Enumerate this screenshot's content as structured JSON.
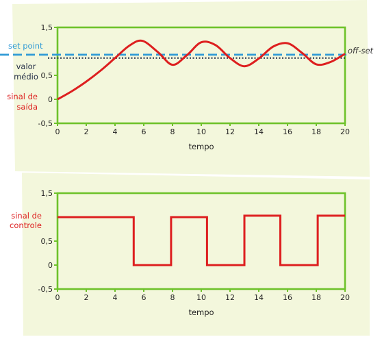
{
  "colors": {
    "panel": "#f3f7dc",
    "frame": "#6ec22b",
    "output": "#dd1f1f",
    "setpoint": "#2f9ad6",
    "average": "#1f2a44",
    "text": "#222222"
  },
  "chart_data": [
    {
      "type": "line",
      "xlabel": "tempo",
      "xlim": [
        0,
        20
      ],
      "ylim": [
        -0.5,
        1.5
      ],
      "x_ticks": [
        "0",
        "2",
        "4",
        "6",
        "8",
        "10",
        "12",
        "14",
        "16",
        "18",
        "20"
      ],
      "y_ticks": [
        "-0,5",
        "0",
        "0,5",
        "1,5"
      ],
      "labels": {
        "setpoint": "set point",
        "average_line1": "valor",
        "average_line2": "médio",
        "output_line1": "sinal de",
        "output_line2": "saída",
        "offset": "off-set"
      },
      "setpoint": 0.93,
      "average": 0.86,
      "series": [
        {
          "role": "output",
          "x": [
            0,
            1,
            2,
            3,
            4,
            5,
            5.9,
            7,
            8,
            9,
            10,
            11,
            12,
            13,
            14,
            15,
            16,
            17,
            18,
            19,
            20
          ],
          "y": [
            0,
            0.17,
            0.37,
            0.6,
            0.86,
            1.12,
            1.22,
            0.98,
            0.72,
            0.92,
            1.19,
            1.13,
            0.86,
            0.69,
            0.85,
            1.1,
            1.17,
            0.97,
            0.73,
            0.78,
            0.95
          ]
        }
      ]
    },
    {
      "type": "line",
      "xlabel": "tempo",
      "xlim": [
        0,
        20
      ],
      "ylim": [
        -0.5,
        1.5
      ],
      "x_ticks": [
        "0",
        "2",
        "4",
        "6",
        "8",
        "10",
        "12",
        "14",
        "16",
        "18",
        "20"
      ],
      "y_ticks": [
        "-0,5",
        "0",
        "0,5",
        "1,5"
      ],
      "labels": {
        "control_line1": "sinal de",
        "control_line2": "controle"
      },
      "series": [
        {
          "role": "control",
          "x": [
            0,
            5.3,
            5.3,
            7.9,
            7.9,
            10.4,
            10.4,
            13.0,
            13.0,
            15.5,
            15.5,
            18.1,
            18.1,
            20
          ],
          "y": [
            1.0,
            1.0,
            0,
            0,
            1.0,
            1.0,
            0,
            0,
            1.03,
            1.03,
            0,
            0,
            1.03,
            1.03
          ]
        }
      ]
    }
  ]
}
